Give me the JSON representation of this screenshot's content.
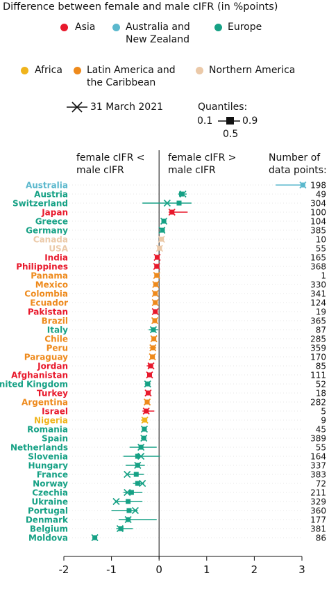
{
  "title": "Difference between female and male cIFR (in %points)",
  "legend": {
    "regions": [
      {
        "name": "Asia",
        "color": "#e8192c"
      },
      {
        "name": "Australia and New Zealand",
        "color": "#5bb8cd"
      },
      {
        "name": "Europe",
        "color": "#16a185"
      },
      {
        "name": "Africa",
        "color": "#f0b41c"
      },
      {
        "name": "Latin America and the Caribbean",
        "color": "#ee8a1c"
      },
      {
        "name": "Northern America",
        "color": "#ebc9a8"
      }
    ],
    "marker_label": "31 March 2021",
    "quantiles_title": "Quantiles:",
    "quantile_low": "0.1",
    "quantile_high": "0.9",
    "quantile_mid": "0.5"
  },
  "headers": {
    "left": "female cIFR < male cIFR",
    "right": "female cIFR > male cIFR",
    "count": "Number of data points:"
  },
  "chart_data": {
    "type": "dot-interval",
    "xlim": [
      -2,
      3
    ],
    "xticks": [
      -2,
      -1,
      0,
      1,
      2,
      3
    ],
    "countries": [
      {
        "name": "Australia",
        "region": "Australia and New Zealand",
        "q10": 2.45,
        "median": 3.02,
        "q90": 3.05,
        "mar2021": 3.02,
        "n": 198
      },
      {
        "name": "Austria",
        "region": "Europe",
        "q10": 0.4,
        "median": 0.47,
        "q90": 0.58,
        "mar2021": 0.5,
        "n": 49
      },
      {
        "name": "Switzerland",
        "region": "Europe",
        "q10": -0.35,
        "median": 0.42,
        "q90": 0.68,
        "mar2021": 0.17,
        "n": 304
      },
      {
        "name": "Japan",
        "region": "Asia",
        "q10": 0.2,
        "median": 0.27,
        "q90": 0.6,
        "mar2021": 0.27,
        "n": 100
      },
      {
        "name": "Greece",
        "region": "Europe",
        "q10": 0.07,
        "median": 0.1,
        "q90": 0.13,
        "mar2021": 0.1,
        "n": 104
      },
      {
        "name": "Germany",
        "region": "Europe",
        "q10": 0.02,
        "median": 0.07,
        "q90": 0.12,
        "mar2021": 0.06,
        "n": 385
      },
      {
        "name": "Canada",
        "region": "Northern America",
        "q10": 0.02,
        "median": 0.05,
        "q90": 0.08,
        "mar2021": 0.05,
        "n": 10
      },
      {
        "name": "USA",
        "region": "Northern America",
        "q10": -0.01,
        "median": 0.01,
        "q90": 0.03,
        "mar2021": 0.01,
        "n": 55
      },
      {
        "name": "India",
        "region": "Asia",
        "q10": -0.07,
        "median": -0.04,
        "q90": -0.01,
        "mar2021": -0.04,
        "n": 165
      },
      {
        "name": "Philippines",
        "region": "Asia",
        "q10": -0.09,
        "median": -0.05,
        "q90": -0.01,
        "mar2021": -0.05,
        "n": 368
      },
      {
        "name": "Panama",
        "region": "Latin America and the Caribbean",
        "q10": -0.07,
        "median": -0.05,
        "q90": -0.03,
        "mar2021": -0.05,
        "n": 1
      },
      {
        "name": "Mexico",
        "region": "Latin America and the Caribbean",
        "q10": -0.1,
        "median": -0.07,
        "q90": -0.04,
        "mar2021": -0.07,
        "n": 330
      },
      {
        "name": "Colombia",
        "region": "Latin America and the Caribbean",
        "q10": -0.11,
        "median": -0.08,
        "q90": -0.05,
        "mar2021": -0.08,
        "n": 341
      },
      {
        "name": "Ecuador",
        "region": "Latin America and the Caribbean",
        "q10": -0.11,
        "median": -0.08,
        "q90": -0.05,
        "mar2021": -0.08,
        "n": 124
      },
      {
        "name": "Pakistan",
        "region": "Asia",
        "q10": -0.11,
        "median": -0.08,
        "q90": -0.05,
        "mar2021": -0.08,
        "n": 19
      },
      {
        "name": "Brazil",
        "region": "Latin America and the Caribbean",
        "q10": -0.12,
        "median": -0.09,
        "q90": -0.06,
        "mar2021": -0.09,
        "n": 365
      },
      {
        "name": "Italy",
        "region": "Europe",
        "q10": -0.22,
        "median": -0.12,
        "q90": -0.02,
        "mar2021": -0.12,
        "n": 87
      },
      {
        "name": "Chile",
        "region": "Latin America and the Caribbean",
        "q10": -0.15,
        "median": -0.11,
        "q90": -0.07,
        "mar2021": -0.11,
        "n": 285
      },
      {
        "name": "Peru",
        "region": "Latin America and the Caribbean",
        "q10": -0.2,
        "median": -0.13,
        "q90": -0.06,
        "mar2021": -0.13,
        "n": 359
      },
      {
        "name": "Paraguay",
        "region": "Latin America and the Caribbean",
        "q10": -0.18,
        "median": -0.14,
        "q90": -0.1,
        "mar2021": -0.14,
        "n": 170
      },
      {
        "name": "Jordan",
        "region": "Asia",
        "q10": -0.26,
        "median": -0.18,
        "q90": -0.12,
        "mar2021": -0.17,
        "n": 85
      },
      {
        "name": "Afghanistan",
        "region": "Asia",
        "q10": -0.23,
        "median": -0.2,
        "q90": -0.17,
        "mar2021": -0.2,
        "n": 111
      },
      {
        "name": "United Kingdom",
        "region": "Europe",
        "q10": -0.3,
        "median": -0.24,
        "q90": -0.18,
        "mar2021": -0.24,
        "n": 52
      },
      {
        "name": "Turkey",
        "region": "Asia",
        "q10": -0.27,
        "median": -0.23,
        "q90": -0.19,
        "mar2021": -0.23,
        "n": 18
      },
      {
        "name": "Argentina",
        "region": "Latin America and the Caribbean",
        "q10": -0.29,
        "median": -0.25,
        "q90": -0.21,
        "mar2021": -0.25,
        "n": 282
      },
      {
        "name": "Israel",
        "region": "Asia",
        "q10": -0.35,
        "median": -0.27,
        "q90": -0.1,
        "mar2021": -0.27,
        "n": 5
      },
      {
        "name": "Nigeria",
        "region": "Africa",
        "q10": -0.38,
        "median": -0.3,
        "q90": -0.26,
        "mar2021": -0.3,
        "n": 9
      },
      {
        "name": "Romania",
        "region": "Europe",
        "q10": -0.36,
        "median": -0.31,
        "q90": -0.26,
        "mar2021": -0.31,
        "n": 45
      },
      {
        "name": "Spain",
        "region": "Europe",
        "q10": -0.38,
        "median": -0.32,
        "q90": -0.27,
        "mar2021": -0.32,
        "n": 389
      },
      {
        "name": "Netherlands",
        "region": "Europe",
        "q10": -0.62,
        "median": -0.38,
        "q90": -0.05,
        "mar2021": -0.38,
        "n": 55
      },
      {
        "name": "Slovenia",
        "region": "Europe",
        "q10": -0.75,
        "median": -0.45,
        "q90": 0.02,
        "mar2021": -0.38,
        "n": 164
      },
      {
        "name": "Hungary",
        "region": "Europe",
        "q10": -0.7,
        "median": -0.45,
        "q90": -0.3,
        "mar2021": -0.45,
        "n": 337
      },
      {
        "name": "France",
        "region": "Europe",
        "q10": -0.68,
        "median": -0.48,
        "q90": -0.32,
        "mar2021": -0.67,
        "n": 383
      },
      {
        "name": "Norway",
        "region": "Europe",
        "q10": -0.55,
        "median": -0.45,
        "q90": -0.32,
        "mar2021": -0.35,
        "n": 72
      },
      {
        "name": "Czechia",
        "region": "Europe",
        "q10": -0.75,
        "median": -0.58,
        "q90": -0.35,
        "mar2021": -0.67,
        "n": 211
      },
      {
        "name": "Ukraine",
        "region": "Europe",
        "q10": -0.92,
        "median": -0.65,
        "q90": -0.35,
        "mar2021": -0.9,
        "n": 329
      },
      {
        "name": "Portugal",
        "region": "Europe",
        "q10": -1.0,
        "median": -0.63,
        "q90": -0.45,
        "mar2021": -0.5,
        "n": 360
      },
      {
        "name": "Denmark",
        "region": "Europe",
        "q10": -0.85,
        "median": -0.65,
        "q90": -0.05,
        "mar2021": -0.65,
        "n": 177
      },
      {
        "name": "Belgium",
        "region": "Europe",
        "q10": -0.9,
        "median": -0.8,
        "q90": -0.55,
        "mar2021": -0.82,
        "n": 381
      },
      {
        "name": "Moldova",
        "region": "Europe",
        "q10": -1.38,
        "median": -1.35,
        "q90": -1.32,
        "mar2021": -1.35,
        "n": 86
      }
    ]
  }
}
